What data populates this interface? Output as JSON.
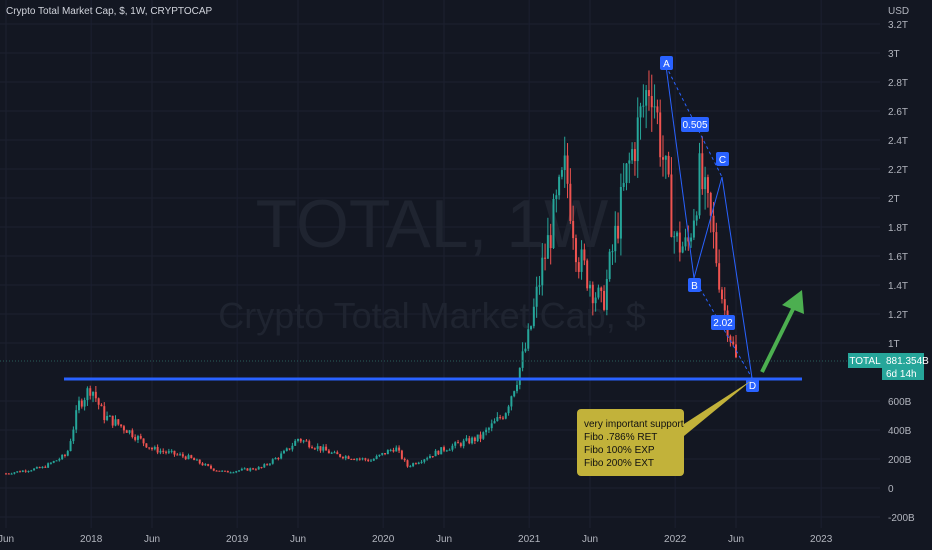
{
  "header": {
    "title": "Crypto Total Market Cap, $, 1W, CRYPTOCAP"
  },
  "watermark": {
    "line1": "TOTAL, 1W",
    "line2": "Crypto Total Market Cap, $"
  },
  "price_axis": {
    "currency_label": "USD",
    "last_price_symbol": "TOTAL",
    "last_price_value": "881.354B",
    "countdown": "6d 14h"
  },
  "colors": {
    "background": "#131722",
    "up_candle": "#26a69a",
    "down_candle": "#ef5350",
    "support_line": "#2962ff",
    "harmonic": "#2962ff",
    "note_box": "#c2b23a",
    "arrow": "#4caf50"
  },
  "annotations": {
    "points": [
      "A",
      "B",
      "C",
      "D"
    ],
    "ratio_ab_xa": "0.505",
    "ratio_cd": "2.02",
    "note": [
      "very important support",
      "Fibo .786% RET",
      "Fibo 100% EXP",
      "Fibo 200% EXT"
    ]
  },
  "chart_data": {
    "type": "candlestick",
    "title": "Crypto Total Market Cap, $, 1W, CRYPTOCAP",
    "y_unit": "USD",
    "y_ticks": [
      "-200B",
      "0",
      "200B",
      "400B",
      "600B",
      "1T",
      "1.2T",
      "1.4T",
      "1.6T",
      "1.8T",
      "2T",
      "2.2T",
      "2.4T",
      "2.6T",
      "2.8T",
      "3T",
      "3.2T"
    ],
    "x_ticks": [
      "Jun",
      "2018",
      "Jun",
      "2019",
      "Jun",
      "2020",
      "Jun",
      "2021",
      "Jun",
      "2022",
      "Jun",
      "2023"
    ],
    "approx_weekly_close_B": [
      [
        "2017-06",
        100
      ],
      [
        "2017-09",
        140
      ],
      [
        "2017-11",
        230
      ],
      [
        "2017-12",
        580
      ],
      [
        "2018-01",
        700
      ],
      [
        "2018-02",
        500
      ],
      [
        "2018-04",
        400
      ],
      [
        "2018-06",
        270
      ],
      [
        "2018-09",
        210
      ],
      [
        "2018-11",
        130
      ],
      [
        "2018-12",
        110
      ],
      [
        "2019-03",
        140
      ],
      [
        "2019-05",
        250
      ],
      [
        "2019-06",
        340
      ],
      [
        "2019-09",
        230
      ],
      [
        "2019-12",
        190
      ],
      [
        "2020-02",
        280
      ],
      [
        "2020-03",
        150
      ],
      [
        "2020-06",
        270
      ],
      [
        "2020-09",
        350
      ],
      [
        "2020-11",
        520
      ],
      [
        "2020-12",
        760
      ],
      [
        "2021-01",
        1050
      ],
      [
        "2021-02",
        1500
      ],
      [
        "2021-04",
        2200
      ],
      [
        "2021-05",
        1600
      ],
      [
        "2021-07",
        1250
      ],
      [
        "2021-09",
        2150
      ],
      [
        "2021-11",
        2850
      ],
      [
        "2022-01",
        1700
      ],
      [
        "2022-02",
        1650
      ],
      [
        "2022-03",
        2150
      ],
      [
        "2022-04",
        1800
      ],
      [
        "2022-05",
        1250
      ],
      [
        "2022-06",
        881
      ]
    ],
    "support_level_B": 780,
    "last_close_B": 881.354,
    "harmonic_pattern": {
      "A": [
        "2021-11",
        2900
      ],
      "B": [
        "2022-01",
        1500
      ],
      "C": [
        "2022-03",
        2200
      ],
      "D": [
        "2022-06",
        800
      ]
    }
  }
}
